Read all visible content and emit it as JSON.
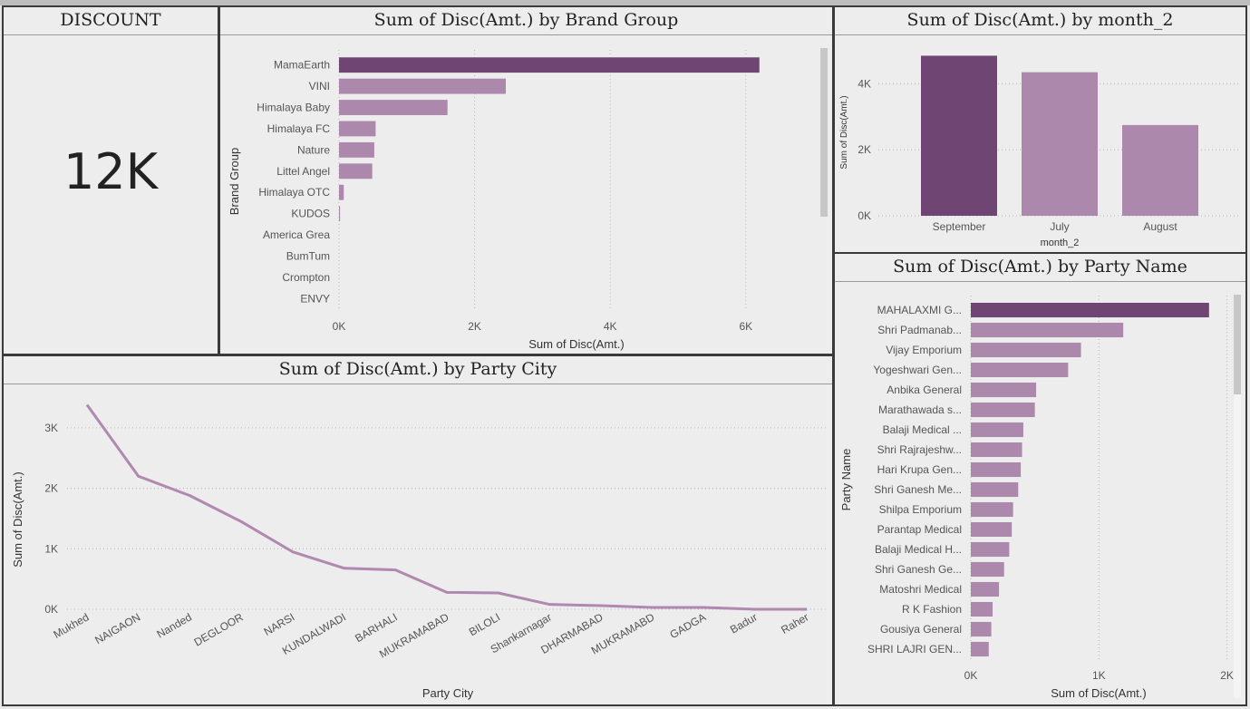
{
  "kpi": {
    "title": "DISCOUNT",
    "value": "12K"
  },
  "brand_chart": {
    "title": "Sum of Disc(Amt.) by Brand Group",
    "xlabel": "Sum of Disc(Amt.)",
    "ylabel": "Brand Group",
    "ticks": [
      "0K",
      "2K",
      "4K",
      "6K"
    ]
  },
  "month_chart": {
    "title": "Sum of Disc(Amt.) by month_2",
    "xlabel": "month_2",
    "ylabel": "Sum of Disc(Amt.)",
    "ticks": [
      "0K",
      "2K",
      "4K"
    ]
  },
  "city_chart": {
    "title": "Sum of Disc(Amt.) by Party City",
    "xlabel": "Party City",
    "ylabel": "Sum of Disc(Amt.)",
    "ticks": [
      "0K",
      "1K",
      "2K",
      "3K"
    ]
  },
  "party_chart": {
    "title": "Sum of Disc(Amt.) by Party Name",
    "xlabel": "Sum of Disc(Amt.)",
    "ylabel": "Party Name",
    "ticks": [
      "0K",
      "1K",
      "2K"
    ]
  },
  "colors": {
    "highlight": "#6e4573",
    "bar": "#ad88ad",
    "line": "#b088b0",
    "grid": "#b5b5b5",
    "text": "#555555"
  },
  "chart_data": [
    {
      "type": "bar",
      "orientation": "horizontal",
      "title": "Sum of Disc(Amt.) by Brand Group",
      "xlabel": "Sum of Disc(Amt.)",
      "ylabel": "Brand Group",
      "categories": [
        "MamaEarth",
        "VINI",
        "Himalaya Baby",
        "Himalaya FC",
        "Nature",
        "Littel Angel",
        "Himalaya OTC",
        "KUDOS",
        "America Grea",
        "BumTum",
        "Crompton",
        "ENVY"
      ],
      "values": [
        6200,
        2460,
        1600,
        540,
        520,
        490,
        70,
        15,
        0,
        0,
        0,
        0
      ],
      "xlim": [
        0,
        7000
      ],
      "grid": true
    },
    {
      "type": "bar",
      "orientation": "vertical",
      "title": "Sum of Disc(Amt.) by month_2",
      "xlabel": "month_2",
      "ylabel": "Sum of Disc(Amt.)",
      "categories": [
        "September",
        "July",
        "August"
      ],
      "values": [
        4850,
        4350,
        2750
      ],
      "ylim": [
        0,
        5000
      ],
      "grid": true
    },
    {
      "type": "line",
      "title": "Sum of Disc(Amt.) by Party City",
      "xlabel": "Party City",
      "ylabel": "Sum of Disc(Amt.)",
      "categories": [
        "Mukhed",
        "NAIGAON",
        "Nanded",
        "DEGLOOR",
        "NARSI",
        "KUNDALWADI",
        "BARHALI",
        "MUKRAMABAD",
        "BILOLI",
        "Shankarnagar",
        "DHARMABAD",
        "MUKRAMABD",
        "GADGA",
        "Badur",
        "Raher"
      ],
      "values": [
        3380,
        2200,
        1880,
        1450,
        950,
        680,
        650,
        280,
        270,
        80,
        60,
        30,
        30,
        0,
        0
      ],
      "ylim": [
        0,
        3500
      ],
      "grid": true
    },
    {
      "type": "bar",
      "orientation": "horizontal",
      "title": "Sum of Disc(Amt.) by Party Name",
      "xlabel": "Sum of Disc(Amt.)",
      "ylabel": "Party Name",
      "categories": [
        "MAHALAXMI G...",
        "Shri Padmanab...",
        "Vijay Emporium",
        "Yogeshwari Gen...",
        "Anbika General",
        "Marathawada s...",
        "Balaji Medical ...",
        "Shri Rajrajeshw...",
        "Hari Krupa Gen...",
        "Shri Ganesh Me...",
        "Shilpa Emporium",
        "Parantap Medical",
        "Balaji Medical H...",
        "Shri Ganesh Ge...",
        "Matoshri Medical",
        "R K Fashion",
        "Gousiya General",
        "SHRI LAJRI GEN..."
      ],
      "values": [
        1860,
        1190,
        860,
        760,
        510,
        500,
        410,
        400,
        390,
        370,
        330,
        320,
        300,
        260,
        220,
        170,
        160,
        140
      ],
      "xlim": [
        0,
        2000
      ],
      "grid": true
    }
  ]
}
